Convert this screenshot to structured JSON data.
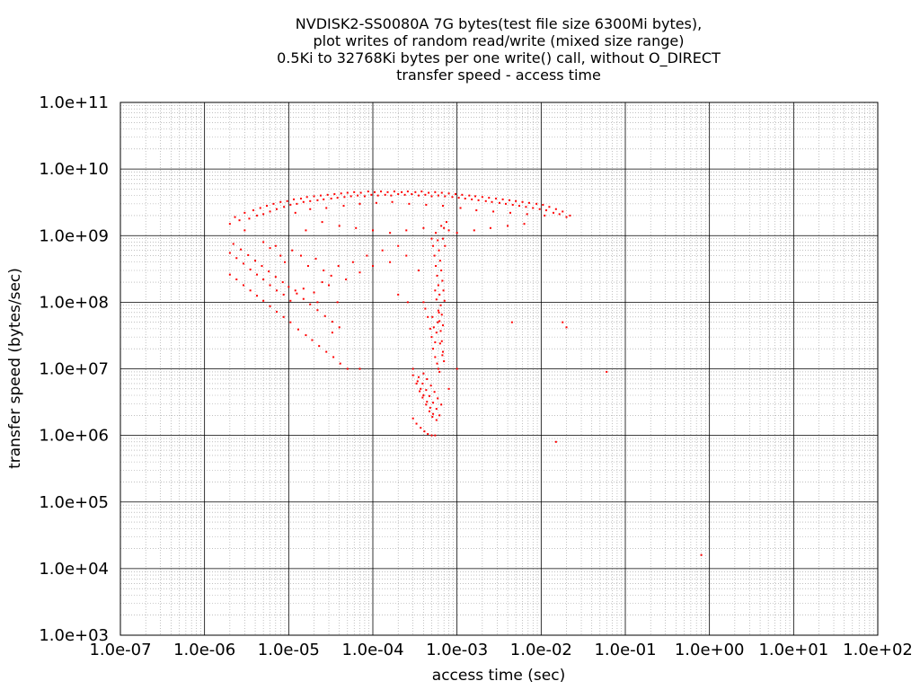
{
  "chart_data": {
    "type": "scatter",
    "title_lines": [
      "NVDISK2-SS0080A 7G bytes(test file size 6300Mi bytes),",
      "plot writes of random read/write (mixed size range)",
      "0.5Ki to 32768Ki bytes per one write() call, without O_DIRECT",
      "transfer speed - access time"
    ],
    "xlabel": "access time (sec)",
    "ylabel": "transfer speed (bytes/sec)",
    "x_scale": "log",
    "y_scale": "log",
    "xlim": [
      1e-07,
      100
    ],
    "ylim": [
      1000,
      100000000000.0
    ],
    "x_ticks": [
      {
        "value": 1e-07,
        "label": "1.0e-07"
      },
      {
        "value": 1e-06,
        "label": "1.0e-06"
      },
      {
        "value": 1e-05,
        "label": "1.0e-05"
      },
      {
        "value": 0.0001,
        "label": "1.0e-04"
      },
      {
        "value": 0.001,
        "label": "1.0e-03"
      },
      {
        "value": 0.01,
        "label": "1.0e-02"
      },
      {
        "value": 0.1,
        "label": "1.0e-01"
      },
      {
        "value": 1,
        "label": "1.0e+00"
      },
      {
        "value": 10,
        "label": "1.0e+01"
      },
      {
        "value": 100,
        "label": "1.0e+02"
      }
    ],
    "y_ticks": [
      {
        "value": 1000.0,
        "label": "1.0e+03"
      },
      {
        "value": 10000.0,
        "label": "1.0e+04"
      },
      {
        "value": 100000.0,
        "label": "1.0e+05"
      },
      {
        "value": 1000000.0,
        "label": "1.0e+06"
      },
      {
        "value": 10000000.0,
        "label": "1.0e+07"
      },
      {
        "value": 100000000.0,
        "label": "1.0e+08"
      },
      {
        "value": 1000000000.0,
        "label": "1.0e+09"
      },
      {
        "value": 10000000000.0,
        "label": "1.0e+10"
      },
      {
        "value": 100000000000.0,
        "label": "1.0e+11"
      }
    ],
    "grid": true,
    "minor_grid": true,
    "legend": "none",
    "point_color": "#ff0000",
    "points": [
      [
        2e-06,
        1500000000.0
      ],
      [
        2.3e-06,
        1900000000.0
      ],
      [
        2.6e-06,
        1700000000.0
      ],
      [
        3e-06,
        2200000000.0
      ],
      [
        3.4e-06,
        1800000000.0
      ],
      [
        3.8e-06,
        2400000000.0
      ],
      [
        4.2e-06,
        2000000000.0
      ],
      [
        4.6e-06,
        2600000000.0
      ],
      [
        5e-06,
        2100000000.0
      ],
      [
        5.5e-06,
        2800000000.0
      ],
      [
        6e-06,
        2300000000.0
      ],
      [
        6.6e-06,
        3000000000.0
      ],
      [
        7.2e-06,
        2500000000.0
      ],
      [
        8e-06,
        3200000000.0
      ],
      [
        8.8e-06,
        2700000000.0
      ],
      [
        9.6e-06,
        3300000000.0
      ],
      [
        1.05e-05,
        2900000000.0
      ],
      [
        1.15e-05,
        3500000000.0
      ],
      [
        1.25e-05,
        3000000000.0
      ],
      [
        1.4e-05,
        3600000000.0
      ],
      [
        1.5e-05,
        3200000000.0
      ],
      [
        1.65e-05,
        3800000000.0
      ],
      [
        1.8e-05,
        3300000000.0
      ],
      [
        2e-05,
        3900000000.0
      ],
      [
        2.2e-05,
        3400000000.0
      ],
      [
        2.4e-05,
        4000000000.0
      ],
      [
        2.6e-05,
        3500000000.0
      ],
      [
        2.9e-05,
        4100000000.0
      ],
      [
        3.2e-05,
        3600000000.0
      ],
      [
        3.5e-05,
        4200000000.0
      ],
      [
        3.8e-05,
        3700000000.0
      ],
      [
        4.2e-05,
        4300000000.0
      ],
      [
        4.6e-05,
        3800000000.0
      ],
      [
        5e-05,
        4400000000.0
      ],
      [
        5.5e-05,
        3900000000.0
      ],
      [
        6e-05,
        4500000000.0
      ],
      [
        6.6e-05,
        4000000000.0
      ],
      [
        7.2e-05,
        4400000000.0
      ],
      [
        8e-05,
        3900000000.0
      ],
      [
        8.8e-05,
        4600000000.0
      ],
      [
        9.6e-05,
        4100000000.0
      ],
      [
        0.000105,
        4500000000.0
      ],
      [
        0.000115,
        4000000000.0
      ],
      [
        0.000125,
        4600000000.0
      ],
      [
        0.00014,
        4100000000.0
      ],
      [
        0.00015,
        4500000000.0
      ],
      [
        0.000165,
        4000000000.0
      ],
      [
        0.00018,
        4600000000.0
      ],
      [
        0.0002,
        4200000000.0
      ],
      [
        0.00022,
        4500000000.0
      ],
      [
        0.00024,
        4100000000.0
      ],
      [
        0.00026,
        4600000000.0
      ],
      [
        0.00029,
        4200000000.0
      ],
      [
        0.00032,
        4500000000.0
      ],
      [
        0.00035,
        4000000000.0
      ],
      [
        0.00038,
        4600000000.0
      ],
      [
        0.00042,
        4100000000.0
      ],
      [
        0.00046,
        4400000000.0
      ],
      [
        0.0005,
        3900000000.0
      ],
      [
        0.00055,
        4500000000.0
      ],
      [
        0.0006,
        4000000000.0
      ],
      [
        0.00066,
        4400000000.0
      ],
      [
        0.00072,
        3900000000.0
      ],
      [
        0.0008,
        4300000000.0
      ],
      [
        0.00088,
        3800000000.0
      ],
      [
        0.00096,
        4200000000.0
      ],
      [
        0.00105,
        3700000000.0
      ],
      [
        0.00115,
        4100000000.0
      ],
      [
        0.00125,
        3600000000.0
      ],
      [
        0.0014,
        4000000000.0
      ],
      [
        0.0015,
        3500000000.0
      ],
      [
        0.00165,
        3900000000.0
      ],
      [
        0.0018,
        3400000000.0
      ],
      [
        0.002,
        3800000000.0
      ],
      [
        0.0022,
        3300000000.0
      ],
      [
        0.0024,
        3700000000.0
      ],
      [
        0.0026,
        3200000000.0
      ],
      [
        0.0029,
        3600000000.0
      ],
      [
        0.0032,
        3100000000.0
      ],
      [
        0.0035,
        3500000000.0
      ],
      [
        0.0038,
        3000000000.0
      ],
      [
        0.0042,
        3400000000.0
      ],
      [
        0.0046,
        2900000000.0
      ],
      [
        0.005,
        3300000000.0
      ],
      [
        0.0055,
        2800000000.0
      ],
      [
        0.006,
        3200000000.0
      ],
      [
        0.0066,
        2700000000.0
      ],
      [
        0.0072,
        3100000000.0
      ],
      [
        0.008,
        2600000000.0
      ],
      [
        0.0088,
        3000000000.0
      ],
      [
        0.0096,
        2500000000.0
      ],
      [
        0.0105,
        2900000000.0
      ],
      [
        0.0115,
        2400000000.0
      ],
      [
        0.0125,
        2700000000.0
      ],
      [
        0.014,
        2200000000.0
      ],
      [
        0.015,
        2500000000.0
      ],
      [
        0.0165,
        2100000000.0
      ],
      [
        0.018,
        2300000000.0
      ],
      [
        0.02,
        1900000000.0
      ],
      [
        0.022,
        2000000000.0
      ],
      [
        1.2e-05,
        2200000000.0
      ],
      [
        1.8e-05,
        2500000000.0
      ],
      [
        2.8e-05,
        2600000000.0
      ],
      [
        4.5e-05,
        2800000000.0
      ],
      [
        7e-05,
        3000000000.0
      ],
      [
        0.00011,
        3100000000.0
      ],
      [
        0.00017,
        3200000000.0
      ],
      [
        0.00027,
        3000000000.0
      ],
      [
        0.00043,
        2900000000.0
      ],
      [
        0.00068,
        2800000000.0
      ],
      [
        0.0011,
        2600000000.0
      ],
      [
        0.0017,
        2400000000.0
      ],
      [
        0.0027,
        2300000000.0
      ],
      [
        0.0043,
        2200000000.0
      ],
      [
        0.0068,
        2100000000.0
      ],
      [
        0.011,
        2000000000.0
      ],
      [
        2.5e-05,
        1600000000.0
      ],
      [
        4e-05,
        1400000000.0
      ],
      [
        6.3e-05,
        1300000000.0
      ],
      [
        0.0001,
        1200000000.0
      ],
      [
        0.00016,
        1100000000.0
      ],
      [
        0.00025,
        1200000000.0
      ],
      [
        0.0004,
        1300000000.0
      ],
      [
        0.001,
        1100000000.0
      ],
      [
        0.0016,
        1200000000.0
      ],
      [
        0.0025,
        1300000000.0
      ],
      [
        0.004,
        1400000000.0
      ],
      [
        0.0063,
        1500000000.0
      ],
      [
        1.6e-05,
        1200000000.0
      ],
      [
        3e-06,
        1200000000.0
      ],
      [
        2e-06,
        550000000.0
      ],
      [
        2.4e-06,
        460000000.0
      ],
      [
        2.9e-06,
        380000000.0
      ],
      [
        3.5e-06,
        310000000.0
      ],
      [
        4.2e-06,
        260000000.0
      ],
      [
        5e-06,
        220000000.0
      ],
      [
        6e-06,
        180000000.0
      ],
      [
        7.2e-06,
        150000000.0
      ],
      [
        8.7e-06,
        130000000.0
      ],
      [
        1.05e-05,
        105000000.0
      ],
      [
        2e-06,
        260000000.0
      ],
      [
        2.4e-06,
        220000000.0
      ],
      [
        2.9e-06,
        180000000.0
      ],
      [
        3.5e-06,
        150000000.0
      ],
      [
        4.2e-06,
        125000000.0
      ],
      [
        5e-06,
        105000000.0
      ],
      [
        6e-06,
        87000000.0
      ],
      [
        7.2e-06,
        72000000.0
      ],
      [
        8.7e-06,
        60000000.0
      ],
      [
        1.05e-05,
        50000000.0
      ],
      [
        2.2e-06,
        750000000.0
      ],
      [
        2.7e-06,
        620000000.0
      ],
      [
        3.3e-06,
        510000000.0
      ],
      [
        4e-06,
        420000000.0
      ],
      [
        4.8e-06,
        350000000.0
      ],
      [
        5.8e-06,
        290000000.0
      ],
      [
        7e-06,
        240000000.0
      ],
      [
        8.5e-06,
        200000000.0
      ],
      [
        1e-05,
        170000000.0
      ],
      [
        1.25e-05,
        135000000.0
      ],
      [
        1.5e-05,
        112000000.0
      ],
      [
        1.8e-05,
        93000000.0
      ],
      [
        2.2e-05,
        76000000.0
      ],
      [
        2.7e-05,
        62000000.0
      ],
      [
        3.3e-05,
        51000000.0
      ],
      [
        4e-05,
        42000000.0
      ],
      [
        1.3e-05,
        39000000.0
      ],
      [
        1.6e-05,
        32000000.0
      ],
      [
        1.9e-05,
        27000000.0
      ],
      [
        2.3e-05,
        22000000.0
      ],
      [
        2.8e-05,
        18000000.0
      ],
      [
        3.4e-05,
        15000000.0
      ],
      [
        4.1e-05,
        12000000.0
      ],
      [
        5e-05,
        10000000.0
      ],
      [
        1.2e-05,
        150000000.0
      ],
      [
        1.5e-05,
        160000000.0
      ],
      [
        2e-05,
        140000000.0
      ],
      [
        2.5e-05,
        200000000.0
      ],
      [
        3e-05,
        180000000.0
      ],
      [
        3.8e-05,
        100000000.0
      ],
      [
        5e-06,
        800000000.0
      ],
      [
        6e-06,
        650000000.0
      ],
      [
        7e-06,
        700000000.0
      ],
      [
        8e-06,
        500000000.0
      ],
      [
        9e-06,
        400000000.0
      ],
      [
        1.1e-05,
        600000000.0
      ],
      [
        1.4e-05,
        500000000.0
      ],
      [
        1.7e-05,
        350000000.0
      ],
      [
        2.1e-05,
        450000000.0
      ],
      [
        2.6e-05,
        300000000.0
      ],
      [
        3.2e-05,
        250000000.0
      ],
      [
        3.9e-05,
        350000000.0
      ],
      [
        4.8e-05,
        220000000.0
      ],
      [
        5.8e-05,
        400000000.0
      ],
      [
        7e-05,
        280000000.0
      ],
      [
        8.5e-05,
        500000000.0
      ],
      [
        0.0001,
        350000000.0
      ],
      [
        0.00013,
        600000000.0
      ],
      [
        0.00016,
        400000000.0
      ],
      [
        0.0002,
        700000000.0
      ],
      [
        0.0004,
        100000000.0
      ],
      [
        0.00042,
        80000000.0
      ],
      [
        0.00045,
        60000000.0
      ],
      [
        0.00048,
        40000000.0
      ],
      [
        0.0005,
        30000000.0
      ],
      [
        0.00052,
        20000000.0
      ],
      [
        0.00055,
        15000000.0
      ],
      [
        0.00058,
        12000000.0
      ],
      [
        0.0006,
        10000000.0
      ],
      [
        0.00062,
        9000000.0
      ],
      [
        0.0005,
        900000000.0
      ],
      [
        0.00052,
        700000000.0
      ],
      [
        0.00054,
        500000000.0
      ],
      [
        0.00056,
        350000000.0
      ],
      [
        0.00058,
        250000000.0
      ],
      [
        0.0006,
        180000000.0
      ],
      [
        0.00062,
        130000000.0
      ],
      [
        0.00064,
        90000000.0
      ],
      [
        0.00066,
        65000000.0
      ],
      [
        0.00068,
        45000000.0
      ],
      [
        0.00056,
        1100000000.0
      ],
      [
        0.00059,
        850000000.0
      ],
      [
        0.00061,
        600000000.0
      ],
      [
        0.00063,
        420000000.0
      ],
      [
        0.00065,
        300000000.0
      ],
      [
        0.00067,
        210000000.0
      ],
      [
        0.00069,
        150000000.0
      ],
      [
        0.00071,
        105000000.0
      ],
      [
        0.0006,
        75000000.0
      ],
      [
        0.00062,
        52000000.0
      ],
      [
        0.00064,
        37000000.0
      ],
      [
        0.00066,
        26000000.0
      ],
      [
        0.00068,
        18000000.0
      ],
      [
        0.0007,
        13000000.0
      ],
      [
        0.00055,
        25000000.0
      ],
      [
        0.00057,
        35000000.0
      ],
      [
        0.00059,
        50000000.0
      ],
      [
        0.00061,
        70000000.0
      ],
      [
        0.00053,
        42000000.0
      ],
      [
        0.00051,
        60000000.0
      ],
      [
        0.0007,
        1300000000.0
      ],
      [
        0.00075,
        1600000000.0
      ],
      [
        0.00065,
        1400000000.0
      ],
      [
        0.0008,
        1200000000.0
      ],
      [
        0.00068,
        900000000.0
      ],
      [
        0.00072,
        700000000.0
      ],
      [
        0.00055,
        150000000.0
      ],
      [
        0.00057,
        110000000.0
      ],
      [
        0.00063,
        24000000.0
      ],
      [
        0.00067,
        16000000.0
      ],
      [
        0.0003,
        10000000.0
      ],
      [
        0.00034,
        6500000.0
      ],
      [
        0.00037,
        5000000.0
      ],
      [
        0.0004,
        4000000.0
      ],
      [
        0.00044,
        3200000.0
      ],
      [
        0.00048,
        2600000.0
      ],
      [
        0.00052,
        2100000.0
      ],
      [
        0.00057,
        1700000.0
      ],
      [
        0.0003,
        8000000.0
      ],
      [
        0.00033,
        6000000.0
      ],
      [
        0.00036,
        4600000.0
      ],
      [
        0.00039,
        3700000.0
      ],
      [
        0.00043,
        2900000.0
      ],
      [
        0.00047,
        2300000.0
      ],
      [
        0.00051,
        1900000.0
      ],
      [
        0.00035,
        7500000.0
      ],
      [
        0.00039,
        6000000.0
      ],
      [
        0.00043,
        4800000.0
      ],
      [
        0.00047,
        3900000.0
      ],
      [
        0.00052,
        3100000.0
      ],
      [
        0.00057,
        2500000.0
      ],
      [
        0.00062,
        2000000.0
      ],
      [
        0.0004,
        8500000.0
      ],
      [
        0.00044,
        7000000.0
      ],
      [
        0.00049,
        5600000.0
      ],
      [
        0.00054,
        4500000.0
      ],
      [
        0.00059,
        3600000.0
      ],
      [
        0.00065,
        2900000.0
      ],
      [
        0.0003,
        1800000.0
      ],
      [
        0.00033,
        1500000.0
      ],
      [
        0.00037,
        1300000.0
      ],
      [
        0.00041,
        1150000.0
      ],
      [
        0.00045,
        1050000.0
      ],
      [
        0.0005,
        1000000.0
      ],
      [
        0.00055,
        1000000.0
      ],
      [
        0.0045,
        50000000.0
      ],
      [
        0.018,
        50000000.0
      ],
      [
        0.02,
        42000000.0
      ],
      [
        0.001,
        10000000.0
      ],
      [
        0.06,
        9000000.0
      ],
      [
        0.0008,
        5000000.0
      ],
      [
        0.015,
        800000.0
      ],
      [
        0.8,
        16000.0
      ],
      [
        0.00026,
        100000000.0
      ],
      [
        7e-05,
        10000000.0
      ],
      [
        0.0002,
        130000000.0
      ],
      [
        3.3e-05,
        35000000.0
      ],
      [
        2.2e-05,
        100000000.0
      ],
      [
        0.00035,
        300000000.0
      ],
      [
        0.00025,
        500000000.0
      ]
    ]
  }
}
